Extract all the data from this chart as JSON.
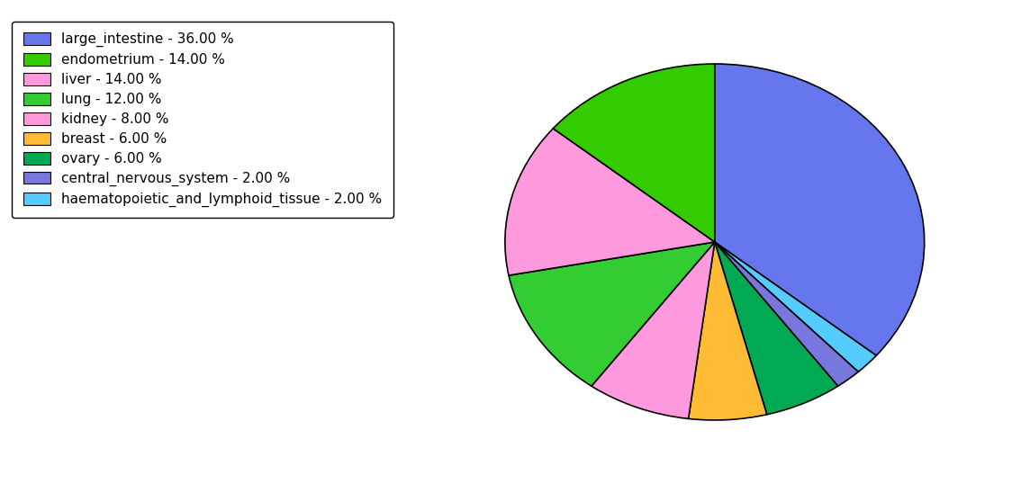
{
  "labels": [
    "large_intestine",
    "haematopoietic_and_lymphoid_tissue",
    "central_nervous_system",
    "ovary",
    "breast",
    "kidney",
    "lung",
    "liver",
    "endometrium"
  ],
  "values": [
    36,
    2,
    2,
    6,
    6,
    8,
    12,
    14,
    14
  ],
  "colors": [
    "#6677ee",
    "#55ccff",
    "#7777dd",
    "#00aa55",
    "#ffbb33",
    "#ff99dd",
    "#33cc33",
    "#ff99dd",
    "#33cc00"
  ],
  "legend_colors": [
    "#6677ee",
    "#33cc00",
    "#ff99dd",
    "#33cc33",
    "#ff99dd",
    "#ffbb33",
    "#00aa55",
    "#7777dd",
    "#55ccff"
  ],
  "legend_labels": [
    "large_intestine - 36.00 %",
    "endometrium - 14.00 %",
    "liver - 14.00 %",
    "lung - 12.00 %",
    "kidney - 8.00 %",
    "breast - 6.00 %",
    "ovary - 6.00 %",
    "central_nervous_system - 2.00 %",
    "haematopoietic_and_lymphoid_tissue - 2.00 %"
  ],
  "figsize": [
    11.34,
    5.38
  ],
  "dpi": 100
}
